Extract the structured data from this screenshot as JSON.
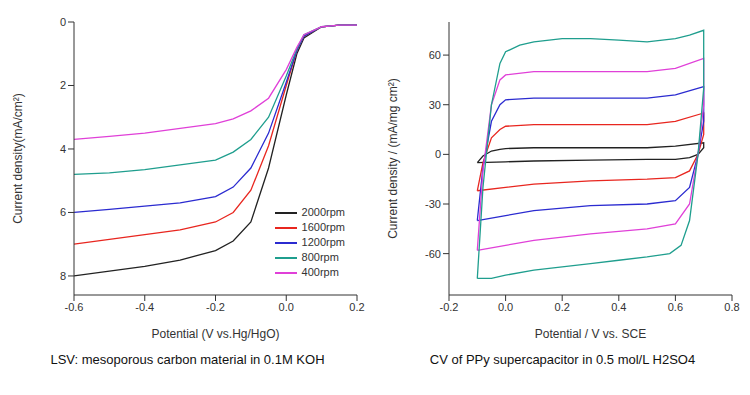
{
  "chart_data": [
    {
      "type": "line",
      "caption": "LSV: mesoporous carbon material in 0.1M KOH",
      "x_label": "Potential (V vs.Hg/HgO)",
      "y_label": "Current density(mA/cm²)",
      "xlim": [
        -0.6,
        0.2
      ],
      "xticks": [
        -0.6,
        -0.4,
        -0.2,
        {
          "value": 0,
          "label": "0.0"
        },
        0.2
      ],
      "ylim": [
        8.6,
        0
      ],
      "yticks": [
        0,
        2,
        4,
        6,
        8
      ],
      "legend": "lower right",
      "x": [
        -0.6,
        -0.5,
        -0.4,
        -0.3,
        -0.2,
        -0.15,
        -0.1,
        -0.05,
        0,
        0.03,
        0.05,
        0.1,
        0.15,
        0.2
      ],
      "series": [
        {
          "name": "2000rpm",
          "color": "#222222",
          "values": [
            8.0,
            7.85,
            7.7,
            7.5,
            7.2,
            6.9,
            6.3,
            4.6,
            2.3,
            1.0,
            0.5,
            0.15,
            0.1,
            0.1
          ]
        },
        {
          "name": "1600rpm",
          "color": "#e8261f",
          "values": [
            7.0,
            6.85,
            6.7,
            6.55,
            6.3,
            6.0,
            5.3,
            3.9,
            2.0,
            0.9,
            0.45,
            0.15,
            0.1,
            0.1
          ]
        },
        {
          "name": "1200rpm",
          "color": "#2b2bd0",
          "values": [
            6.0,
            5.9,
            5.8,
            5.7,
            5.5,
            5.2,
            4.6,
            3.5,
            1.9,
            0.9,
            0.45,
            0.15,
            0.1,
            0.1
          ]
        },
        {
          "name": "800rpm",
          "color": "#1f9e8e",
          "values": [
            4.8,
            4.75,
            4.65,
            4.5,
            4.35,
            4.1,
            3.7,
            3.0,
            1.7,
            0.85,
            0.4,
            0.15,
            0.1,
            0.1
          ]
        },
        {
          "name": "400rpm",
          "color": "#e040d8",
          "values": [
            3.7,
            3.6,
            3.5,
            3.35,
            3.2,
            3.05,
            2.8,
            2.4,
            1.5,
            0.8,
            0.4,
            0.15,
            0.1,
            0.1
          ]
        }
      ]
    },
    {
      "type": "line",
      "caption": "CV of PPy supercapacitor in 0.5 mol/L H2SO4",
      "x_label": "Potential / V vs. SCE",
      "y_label": "Current density / (mA/mg cm²)",
      "xlim": [
        -0.2,
        0.8
      ],
      "xticks": [
        -0.2,
        {
          "value": 0,
          "label": "0.0"
        },
        0.2,
        0.4,
        0.6,
        0.8
      ],
      "ylim": [
        -85,
        80
      ],
      "yticks": [
        -60,
        -30,
        0,
        30,
        60
      ],
      "series": [
        {
          "color": "#222222",
          "x": [
            -0.1,
            -0.08,
            -0.05,
            -0.02,
            0,
            0.1,
            0.3,
            0.5,
            0.6,
            0.7,
            0.7,
            0.68,
            0.65,
            0.6,
            0.5,
            0.3,
            0.1,
            0,
            -0.1
          ],
          "values": [
            -5,
            -1,
            2,
            3,
            3.5,
            4,
            4,
            4,
            5,
            7,
            4,
            0,
            -2,
            -3,
            -3,
            -3.5,
            -4,
            -4.5,
            -5
          ]
        },
        {
          "color": "#e8261f",
          "x": [
            -0.1,
            -0.08,
            -0.05,
            -0.02,
            0,
            0.1,
            0.3,
            0.5,
            0.6,
            0.7,
            0.7,
            0.68,
            0.65,
            0.6,
            0.5,
            0.3,
            0.1,
            0,
            -0.1
          ],
          "values": [
            -22,
            -5,
            10,
            15,
            17,
            18,
            18,
            18,
            20,
            25,
            12,
            0,
            -10,
            -14,
            -15,
            -16,
            -18,
            -20,
            -22
          ]
        },
        {
          "color": "#2b2bd0",
          "x": [
            -0.1,
            -0.08,
            -0.05,
            -0.02,
            0,
            0.1,
            0.3,
            0.5,
            0.6,
            0.7,
            0.7,
            0.68,
            0.65,
            0.6,
            0.5,
            0.3,
            0.1,
            0,
            -0.1
          ],
          "values": [
            -40,
            -8,
            20,
            30,
            33,
            34,
            34,
            34,
            36,
            41,
            20,
            0,
            -20,
            -28,
            -30,
            -31,
            -34,
            -37,
            -40
          ]
        },
        {
          "color": "#e040d8",
          "x": [
            -0.1,
            -0.08,
            -0.05,
            -0.02,
            0,
            0.1,
            0.3,
            0.5,
            0.6,
            0.7,
            0.7,
            0.68,
            0.65,
            0.6,
            0.5,
            0.3,
            0.1,
            0,
            -0.1
          ],
          "values": [
            -58,
            -10,
            30,
            45,
            48,
            50,
            50,
            50,
            52,
            58,
            30,
            0,
            -30,
            -42,
            -45,
            -48,
            -52,
            -55,
            -58
          ]
        },
        {
          "color": "#1f9e8e",
          "x": [
            -0.1,
            -0.08,
            -0.05,
            -0.02,
            0,
            0.05,
            0.1,
            0.2,
            0.3,
            0.4,
            0.5,
            0.6,
            0.65,
            0.7,
            0.7,
            0.68,
            0.65,
            0.62,
            0.58,
            0.5,
            0.4,
            0.3,
            0.2,
            0.1,
            0,
            -0.05,
            -0.1
          ],
          "values": [
            -75,
            -20,
            30,
            55,
            62,
            66,
            68,
            70,
            70,
            69,
            68,
            70,
            72,
            75,
            40,
            0,
            -40,
            -55,
            -60,
            -62,
            -64,
            -66,
            -68,
            -70,
            -73,
            -75,
            -75
          ]
        }
      ]
    }
  ]
}
